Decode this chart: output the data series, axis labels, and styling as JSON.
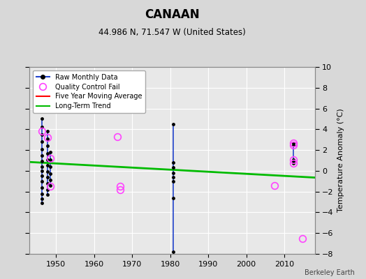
{
  "title": "CANAAN",
  "subtitle": "44.986 N, 71.547 W (United States)",
  "credit": "Berkeley Earth",
  "ylabel": "Temperature Anomaly (°C)",
  "xlim": [
    1943,
    2018
  ],
  "ylim": [
    -8,
    10
  ],
  "yticks": [
    -8,
    -6,
    -4,
    -2,
    0,
    2,
    4,
    6,
    8,
    10
  ],
  "xticks": [
    1950,
    1960,
    1970,
    1980,
    1990,
    2000,
    2010
  ],
  "bg_color": "#d8d8d8",
  "plot_bg": "#e8e8e8",
  "long_term_trend": {
    "x": [
      1943,
      2018
    ],
    "y": [
      0.85,
      -0.65
    ]
  },
  "long_term_color": "#00bb00",
  "raw_line_color": "#2244cc",
  "raw_dot_color": "#000000",
  "qc_color": "#ff44ff",
  "five_yr_color": "#ff0000",
  "raw_segments": [
    {
      "x": 1946.3,
      "ymin": -3.1,
      "ymax": 5.0
    },
    {
      "x": 1947.8,
      "ymin": -2.3,
      "ymax": 3.8
    },
    {
      "x": 1948.6,
      "ymin": -1.4,
      "ymax": 1.8
    },
    {
      "x": 1980.9,
      "ymin": -7.8,
      "ymax": 4.5
    },
    {
      "x": 2012.3,
      "ymin": 0.7,
      "ymax": 2.7
    }
  ],
  "raw_dots": [
    [
      1946.3,
      5.0
    ],
    [
      1946.3,
      4.2
    ],
    [
      1946.3,
      3.5
    ],
    [
      1946.3,
      2.8
    ],
    [
      1946.3,
      2.1
    ],
    [
      1946.3,
      1.5
    ],
    [
      1946.3,
      0.9
    ],
    [
      1946.3,
      0.4
    ],
    [
      1946.3,
      0.0
    ],
    [
      1946.3,
      -0.5
    ],
    [
      1946.3,
      -1.0
    ],
    [
      1946.3,
      -1.6
    ],
    [
      1946.3,
      -2.2
    ],
    [
      1946.3,
      -2.7
    ],
    [
      1946.3,
      -3.1
    ],
    [
      1947.8,
      3.8
    ],
    [
      1947.8,
      3.1
    ],
    [
      1947.8,
      2.4
    ],
    [
      1947.8,
      1.7
    ],
    [
      1947.8,
      1.1
    ],
    [
      1947.8,
      0.5
    ],
    [
      1947.8,
      -0.1
    ],
    [
      1947.8,
      -0.6
    ],
    [
      1947.8,
      -1.2
    ],
    [
      1947.8,
      -1.8
    ],
    [
      1947.8,
      -2.3
    ],
    [
      1948.6,
      1.8
    ],
    [
      1948.6,
      1.1
    ],
    [
      1948.6,
      0.4
    ],
    [
      1948.6,
      -0.3
    ],
    [
      1948.6,
      -0.9
    ],
    [
      1948.6,
      -1.4
    ],
    [
      1980.9,
      4.5
    ],
    [
      1980.9,
      0.8
    ],
    [
      1980.9,
      0.3
    ],
    [
      1980.9,
      -0.2
    ],
    [
      1980.9,
      -0.6
    ],
    [
      1980.9,
      -1.0
    ],
    [
      1980.9,
      -2.6
    ],
    [
      1980.9,
      -7.8
    ],
    [
      2012.3,
      2.7
    ],
    [
      2012.3,
      2.5
    ],
    [
      2012.3,
      1.1
    ],
    [
      2012.3,
      0.9
    ],
    [
      2012.3,
      0.7
    ]
  ],
  "qc_points": [
    [
      1946.3,
      3.8
    ],
    [
      1947.8,
      3.2
    ],
    [
      1948.6,
      1.2
    ],
    [
      1948.6,
      -1.5
    ],
    [
      1966.2,
      3.3
    ],
    [
      1966.8,
      -1.5
    ],
    [
      1966.8,
      -1.8
    ],
    [
      2007.5,
      -1.4
    ],
    [
      2012.3,
      2.7
    ],
    [
      2012.3,
      2.5
    ],
    [
      2012.3,
      1.1
    ],
    [
      2012.3,
      0.7
    ],
    [
      2014.8,
      -6.5
    ]
  ]
}
